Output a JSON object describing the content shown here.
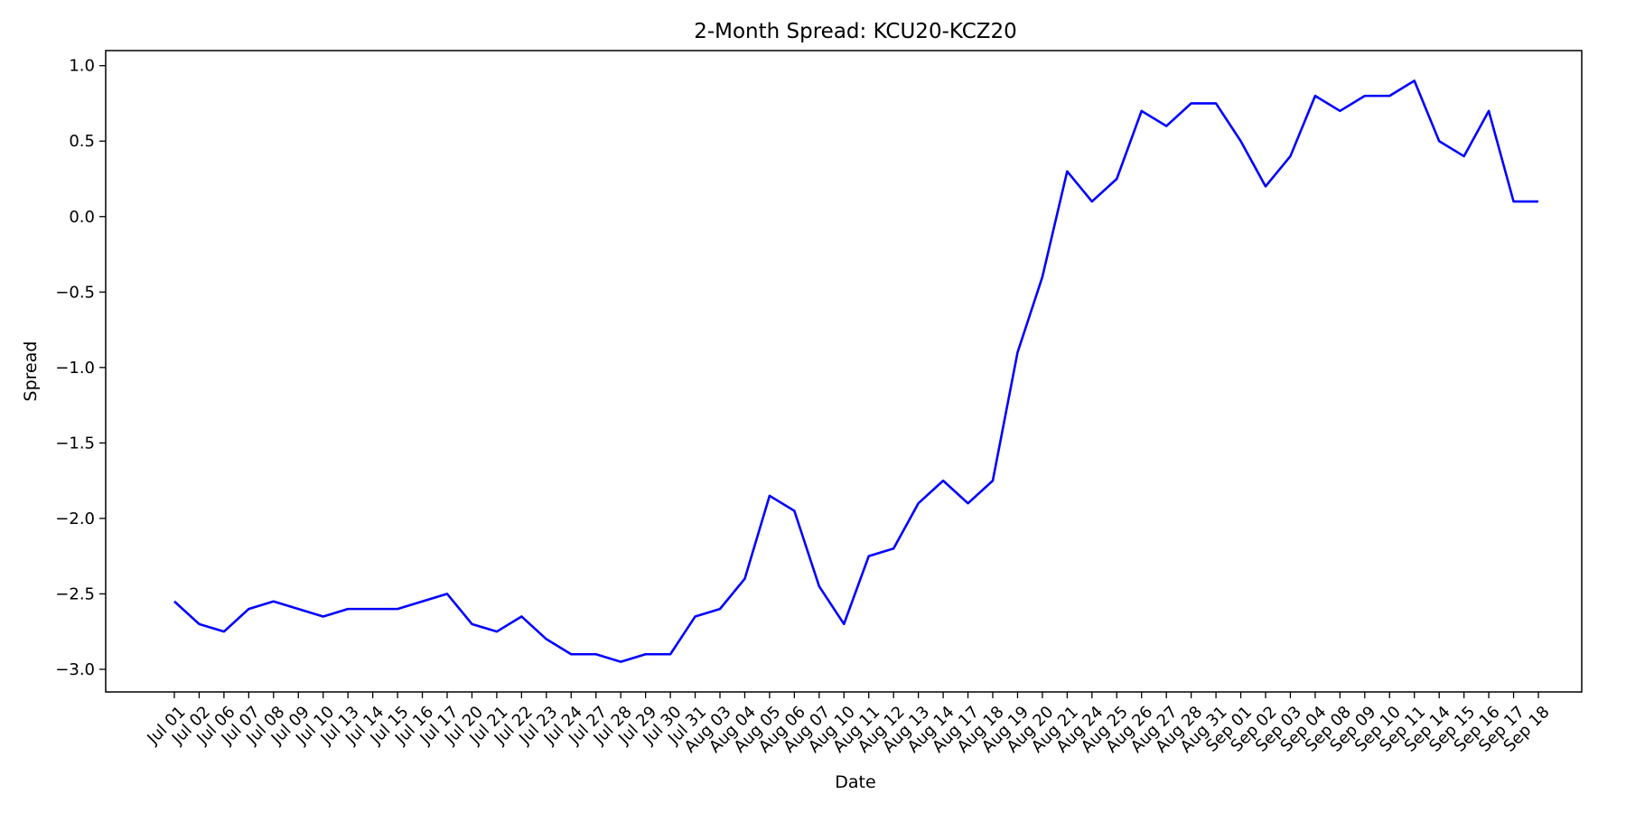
{
  "chart_data": {
    "type": "line",
    "title": "2-Month Spread: KCU20-KCZ20",
    "xlabel": "Date",
    "ylabel": "Spread",
    "ylim": [
      -3.15,
      1.1
    ],
    "y_ticks": [
      1.0,
      0.5,
      0.0,
      -0.5,
      -1.0,
      -1.5,
      -2.0,
      -2.5,
      -3.0
    ],
    "y_tick_labels": [
      "1.0",
      "0.5",
      "0.0",
      "−0.5",
      "−1.0",
      "−1.5",
      "−2.0",
      "−2.5",
      "−3.0"
    ],
    "grid": false,
    "categories": [
      "Jul 01",
      "Jul 02",
      "Jul 06",
      "Jul 07",
      "Jul 08",
      "Jul 09",
      "Jul 10",
      "Jul 13",
      "Jul 14",
      "Jul 15",
      "Jul 16",
      "Jul 17",
      "Jul 20",
      "Jul 21",
      "Jul 22",
      "Jul 23",
      "Jul 24",
      "Jul 27",
      "Jul 28",
      "Jul 29",
      "Jul 30",
      "Jul 31",
      "Aug 03",
      "Aug 04",
      "Aug 05",
      "Aug 06",
      "Aug 07",
      "Aug 10",
      "Aug 11",
      "Aug 12",
      "Aug 13",
      "Aug 14",
      "Aug 17",
      "Aug 18",
      "Aug 19",
      "Aug 20",
      "Aug 21",
      "Aug 24",
      "Aug 25",
      "Aug 26",
      "Aug 27",
      "Aug 28",
      "Aug 31",
      "Sep 01",
      "Sep 02",
      "Sep 03",
      "Sep 04",
      "Sep 08",
      "Sep 09",
      "Sep 10",
      "Sep 11",
      "Sep 14",
      "Sep 15",
      "Sep 16",
      "Sep 17",
      "Sep 18"
    ],
    "series": [
      {
        "color": "#0000ff",
        "values": [
          -2.55,
          -2.7,
          -2.75,
          -2.6,
          -2.55,
          -2.6,
          -2.65,
          -2.6,
          -2.6,
          -2.6,
          -2.55,
          -2.5,
          -2.7,
          -2.75,
          -2.65,
          -2.8,
          -2.9,
          -2.9,
          -2.95,
          -2.9,
          -2.9,
          -2.65,
          -2.6,
          -2.4,
          -1.85,
          -1.95,
          -2.45,
          -2.7,
          -2.25,
          -2.2,
          -1.9,
          -1.75,
          -1.9,
          -1.75,
          -0.9,
          -0.4,
          0.3,
          0.1,
          0.25,
          0.7,
          0.6,
          0.75,
          0.75,
          0.5,
          0.2,
          0.4,
          0.8,
          0.7,
          0.8,
          0.8,
          0.9,
          0.5,
          0.4,
          0.7,
          0.1,
          0.1
        ]
      }
    ]
  }
}
